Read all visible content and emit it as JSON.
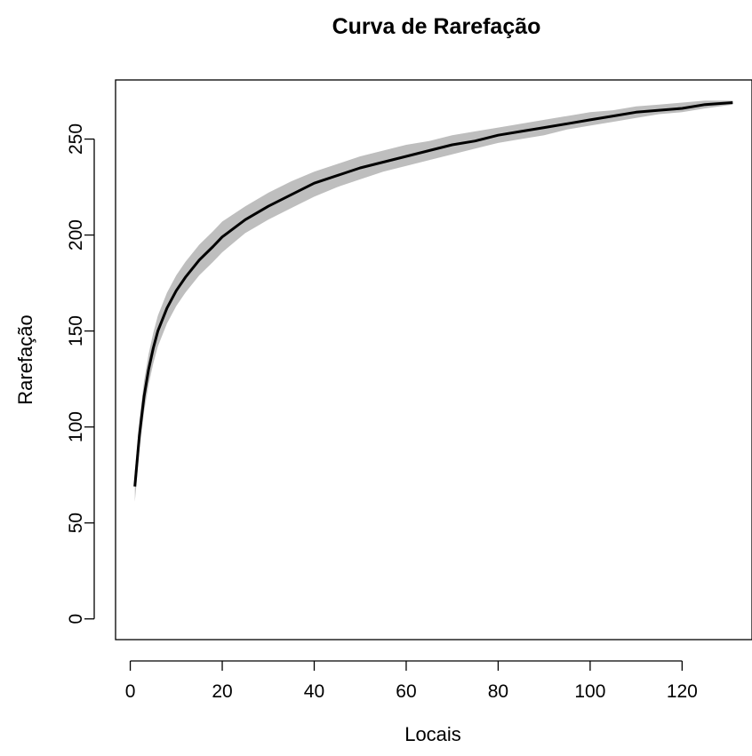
{
  "chart_data": {
    "type": "area",
    "title": "Curva de Rarefação",
    "xlabel": "Locais",
    "ylabel": "Rarefação",
    "xlim": [
      -3.2,
      135.2
    ],
    "ylim": [
      -10.8,
      280.8
    ],
    "x_ticks": [
      0,
      20,
      40,
      60,
      80,
      100,
      120
    ],
    "x_tick_labels": [
      "0",
      "20",
      "40",
      "60",
      "80",
      "100",
      "120"
    ],
    "y_ticks": [
      0,
      50,
      100,
      150,
      200,
      250
    ],
    "y_tick_labels": [
      "0",
      "50",
      "100",
      "150",
      "200",
      "250"
    ],
    "grid": false,
    "band_color": "#bebebe",
    "line_color": "#000000",
    "series": [
      {
        "x": [
          1,
          2,
          3,
          4,
          5,
          6,
          8,
          10,
          12,
          15,
          18,
          20,
          25,
          30,
          35,
          40,
          45,
          50,
          55,
          60,
          65,
          70,
          75,
          80,
          85,
          90,
          95,
          100,
          105,
          110,
          115,
          120,
          125,
          131
        ],
        "values": [
          69,
          96,
          116,
          130,
          141,
          150,
          162,
          171,
          178,
          187,
          194,
          199,
          208,
          215,
          221,
          227,
          231,
          235,
          238,
          241,
          244,
          247,
          249,
          252,
          254,
          256,
          258,
          260,
          262,
          264,
          265,
          266,
          268,
          269
        ],
        "lower": [
          61,
          88,
          108,
          122,
          133,
          142,
          154,
          163,
          170,
          179,
          186,
          191,
          201,
          208,
          214,
          220,
          225,
          229,
          233,
          236,
          239,
          242,
          245,
          248,
          250,
          252,
          255,
          257,
          259,
          261,
          263,
          264,
          266,
          268
        ],
        "upper": [
          77,
          104,
          124,
          138,
          149,
          158,
          170,
          179,
          186,
          195,
          202,
          207,
          215,
          222,
          228,
          233,
          237,
          241,
          244,
          247,
          249,
          252,
          254,
          256,
          258,
          260,
          262,
          264,
          265,
          267,
          268,
          269,
          270,
          270
        ]
      }
    ]
  }
}
